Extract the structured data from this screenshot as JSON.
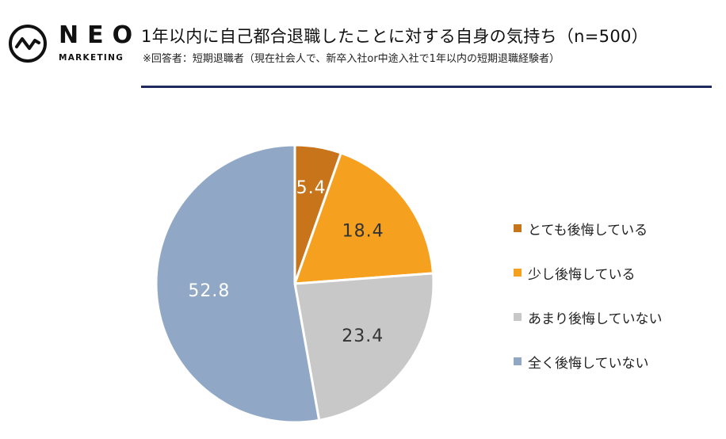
{
  "logo": {
    "word": "NEO",
    "sub": "MARKETING"
  },
  "header": {
    "title": "1年以内に自己都合退職したことに対する自身の気持ち（n=500）",
    "subtitle": "※回答者：短期退職者（現在社会人で、新卒入社or中途入社で1年以内の短期退職経験者）"
  },
  "chart_data": {
    "type": "pie",
    "title": "1年以内に自己都合退職したことに対する自身の気持ち（n=500）",
    "categories": [
      "とても後悔している",
      "少し後悔している",
      "あまり後悔していない",
      "全く後悔していない"
    ],
    "values": [
      5.4,
      18.4,
      23.4,
      52.8
    ],
    "data_labels": [
      "5.4",
      "18.4",
      "23.4",
      "52.8"
    ],
    "colors": [
      "#c8741a",
      "#f5a01f",
      "#c8c8c8",
      "#90a8c6"
    ],
    "label_colors": [
      "#ffffff",
      "#333333",
      "#333333",
      "#ffffff"
    ],
    "legend_position": "right",
    "start_angle": "top",
    "direction": "clockwise"
  }
}
